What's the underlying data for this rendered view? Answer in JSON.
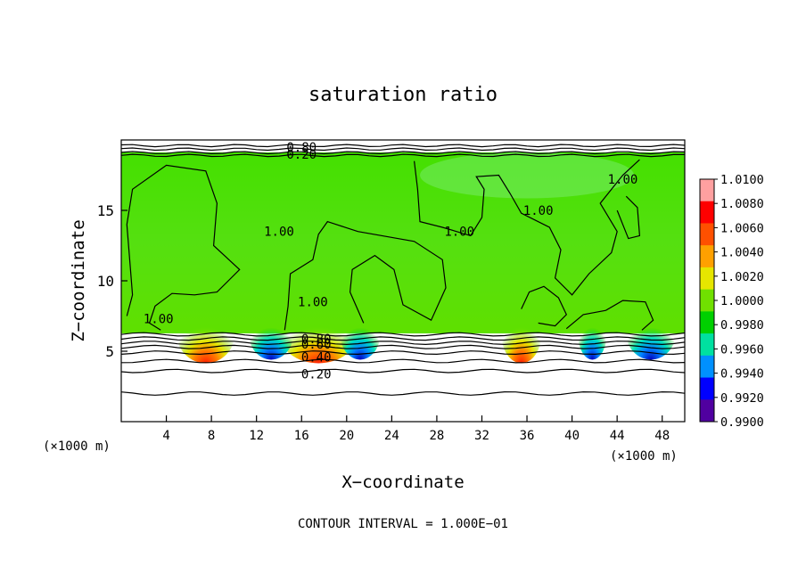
{
  "chart_data": {
    "type": "heatmap",
    "title": "saturation ratio",
    "xlabel": "X−coordinate",
    "ylabel": "Z−coordinate",
    "x_unit_left": "(×1000 m)",
    "x_unit_right": "(×1000 m)",
    "xlim": [
      0,
      50
    ],
    "ylim": [
      0,
      20
    ],
    "x_ticks": [
      4,
      8,
      12,
      16,
      20,
      24,
      28,
      32,
      36,
      40,
      44,
      48
    ],
    "y_ticks": [
      5,
      10,
      15
    ],
    "colorbar": {
      "levels": [
        "1.0100",
        "1.0080",
        "1.0060",
        "1.0040",
        "1.0020",
        "1.0000",
        "0.9980",
        "0.9960",
        "0.9940",
        "0.9920",
        "0.9900"
      ],
      "colors": [
        "#ffa0a0",
        "#ff0000",
        "#ff5000",
        "#ffa000",
        "#e6e600",
        "#70e000",
        "#00d000",
        "#00e0a0",
        "#0090ff",
        "#0000ff",
        "#5000a0"
      ]
    },
    "contour_labels": [
      {
        "text": "0.80",
        "x": 16.0,
        "z": 19.5
      },
      {
        "text": "0.20",
        "x": 16.0,
        "z": 19.0
      },
      {
        "text": "1.00",
        "x": 3.3,
        "z": 7.3
      },
      {
        "text": "1.00",
        "x": 14.0,
        "z": 13.5
      },
      {
        "text": "1.00",
        "x": 17.0,
        "z": 8.5
      },
      {
        "text": "1.00",
        "x": 30.0,
        "z": 13.5
      },
      {
        "text": "1.00",
        "x": 37.0,
        "z": 15.0
      },
      {
        "text": "1.00",
        "x": 44.5,
        "z": 17.2
      },
      {
        "text": "0.80",
        "x": 17.3,
        "z": 5.9
      },
      {
        "text": "0.60",
        "x": 17.3,
        "z": 5.5
      },
      {
        "text": "0.40",
        "x": 17.3,
        "z": 4.6
      },
      {
        "text": "0.20",
        "x": 17.3,
        "z": 3.4
      }
    ],
    "contour_interval_text": "CONTOUR INTERVAL = 1.000E−01"
  }
}
